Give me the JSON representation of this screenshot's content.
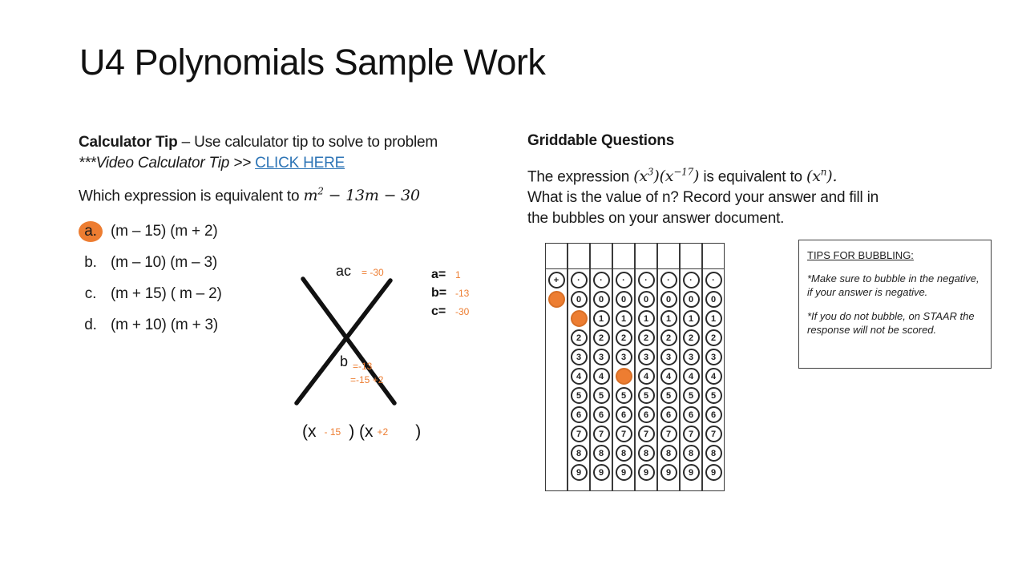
{
  "slide": {
    "title": "U4 Polynomials Sample Work"
  },
  "calculator_tip": {
    "heading": "Calculator Tip",
    "heading_rest": " – Use calculator tip to solve to problem",
    "video_line": "***Video Calculator Tip >> ",
    "link_label": "CLICK HERE"
  },
  "question": {
    "prompt": "Which expression is equivalent to ",
    "math": {
      "base": "m",
      "sup": "2",
      "rest": " − 13m − 30"
    },
    "options": [
      {
        "letter": "a.",
        "text": "(m – 15) (m + 2)",
        "selected": true
      },
      {
        "letter": "b.",
        "text": "(m – 10) (m – 3)",
        "selected": false
      },
      {
        "letter": "c.",
        "text": "(m + 15) ( m – 2)",
        "selected": false
      },
      {
        "letter": "d.",
        "text": "(m + 10) (m + 3)",
        "selected": false
      }
    ]
  },
  "x_diagram": {
    "top_label": "ac",
    "top_value": "= -30",
    "coeffs": [
      {
        "label": "a=",
        "value": "1"
      },
      {
        "label": "b=",
        "value": "-13"
      },
      {
        "label": "c=",
        "value": "-30"
      }
    ],
    "bottom_label": "b",
    "bottom_value": "=-13",
    "bottom_value2": "=-15 +2",
    "factored": {
      "p1": "(x",
      "v1": "- 15",
      "p2": ") (x",
      "v2": "+2",
      "p3": ")"
    }
  },
  "griddable": {
    "heading": "Griddable Questions",
    "line1_prefix": "The expression ",
    "expr1": {
      "open": "(x",
      "sup1": "3",
      "mid": ")(x",
      "sup2": "−17",
      "close": ")"
    },
    "line1_mid": " is equivalent to ",
    "expr2": {
      "open": "(x",
      "sup": "n",
      "close": ")."
    },
    "line2": "What is the value of n? Record your answer and fill in",
    "line3": "the bubbles on your answer document."
  },
  "grid": {
    "columns": [
      {
        "bubbles": [
          "+",
          "−"
        ],
        "filled": [
          "−"
        ]
      },
      {
        "bubbles": [
          ".",
          "0",
          "1",
          "2",
          "3",
          "4",
          "5",
          "6",
          "7",
          "8",
          "9"
        ],
        "filled": [
          "1"
        ]
      },
      {
        "bubbles": [
          ".",
          "0",
          "1",
          "2",
          "3",
          "4",
          "5",
          "6",
          "7",
          "8",
          "9"
        ],
        "filled": []
      },
      {
        "bubbles": [
          ".",
          "0",
          "1",
          "2",
          "3",
          "4",
          "5",
          "6",
          "7",
          "8",
          "9"
        ],
        "filled": [
          "4"
        ]
      },
      {
        "bubbles": [
          ".",
          "0",
          "1",
          "2",
          "3",
          "4",
          "5",
          "6",
          "7",
          "8",
          "9"
        ],
        "filled": []
      },
      {
        "bubbles": [
          ".",
          "0",
          "1",
          "2",
          "3",
          "4",
          "5",
          "6",
          "7",
          "8",
          "9"
        ],
        "filled": []
      },
      {
        "bubbles": [
          ".",
          "0",
          "1",
          "2",
          "3",
          "4",
          "5",
          "6",
          "7",
          "8",
          "9"
        ],
        "filled": []
      },
      {
        "bubbles": [
          ".",
          "0",
          "1",
          "2",
          "3",
          "4",
          "5",
          "6",
          "7",
          "8",
          "9"
        ],
        "filled": []
      }
    ]
  },
  "tips": {
    "title": "TIPS FOR BUBBLING:",
    "items": [
      "*Make sure to bubble in the negative, if your answer is negative.",
      "*If you do not bubble, on STAAR the response will not be scored."
    ]
  },
  "colors": {
    "accent_orange": "#ED7D31",
    "link_blue": "#2E75B6"
  }
}
